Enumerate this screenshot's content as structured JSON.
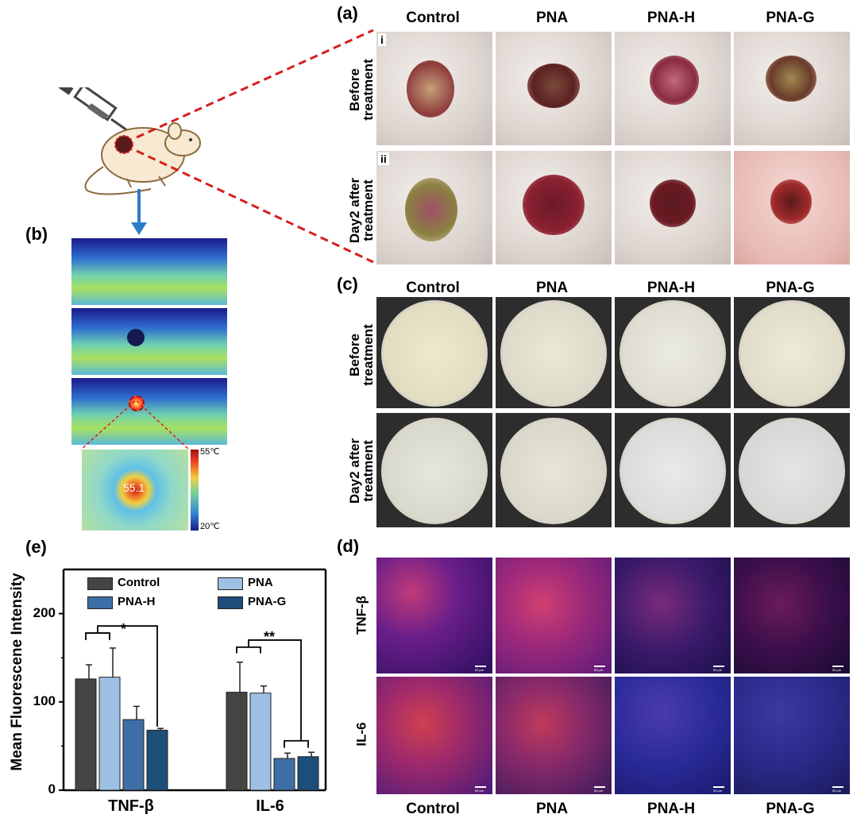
{
  "panels": {
    "a": "(a)",
    "b": "(b)",
    "c": "(c)",
    "d": "(d)",
    "e": "(e)"
  },
  "groups": [
    "Control",
    "PNA",
    "PNA-H",
    "PNA-G"
  ],
  "rows_a": {
    "i": "i",
    "ii": "ii",
    "before": "Before\ntreatment",
    "after": "Day2 after\ntreatment"
  },
  "rows_c": {
    "before": "Before\ntreatment",
    "after": "Day2 after\ntreatment"
  },
  "rows_d": {
    "tnf": "TNF-β",
    "il6": "IL-6"
  },
  "scale_label": "50 μm",
  "thermal": {
    "max_label": "55℃",
    "min_label": "20℃",
    "readout": "55.1"
  },
  "colors": {
    "control": "#454545",
    "pna": "#9dc0e4",
    "pnah": "#3d6fa6",
    "pnag": "#1d4e79",
    "arrow": "#2e7cc8",
    "dash": "#d81e1e"
  },
  "chart_data": {
    "type": "bar",
    "ylabel": "Mean Fluorescene Intensity",
    "ylim": [
      0,
      250
    ],
    "yticks": [
      0,
      100,
      200
    ],
    "categories": [
      "TNF-β",
      "IL-6"
    ],
    "series": [
      {
        "name": "Control",
        "values": [
          126,
          111
        ],
        "errors": [
          16,
          34
        ]
      },
      {
        "name": "PNA",
        "values": [
          128,
          110
        ],
        "errors": [
          33,
          8
        ]
      },
      {
        "name": "PNA-H",
        "values": [
          80,
          36
        ],
        "errors": [
          15,
          6
        ]
      },
      {
        "name": "PNA-G",
        "values": [
          68,
          38
        ],
        "errors": [
          2,
          5
        ]
      }
    ],
    "significance": [
      "*",
      "**"
    ],
    "legend": "top"
  }
}
